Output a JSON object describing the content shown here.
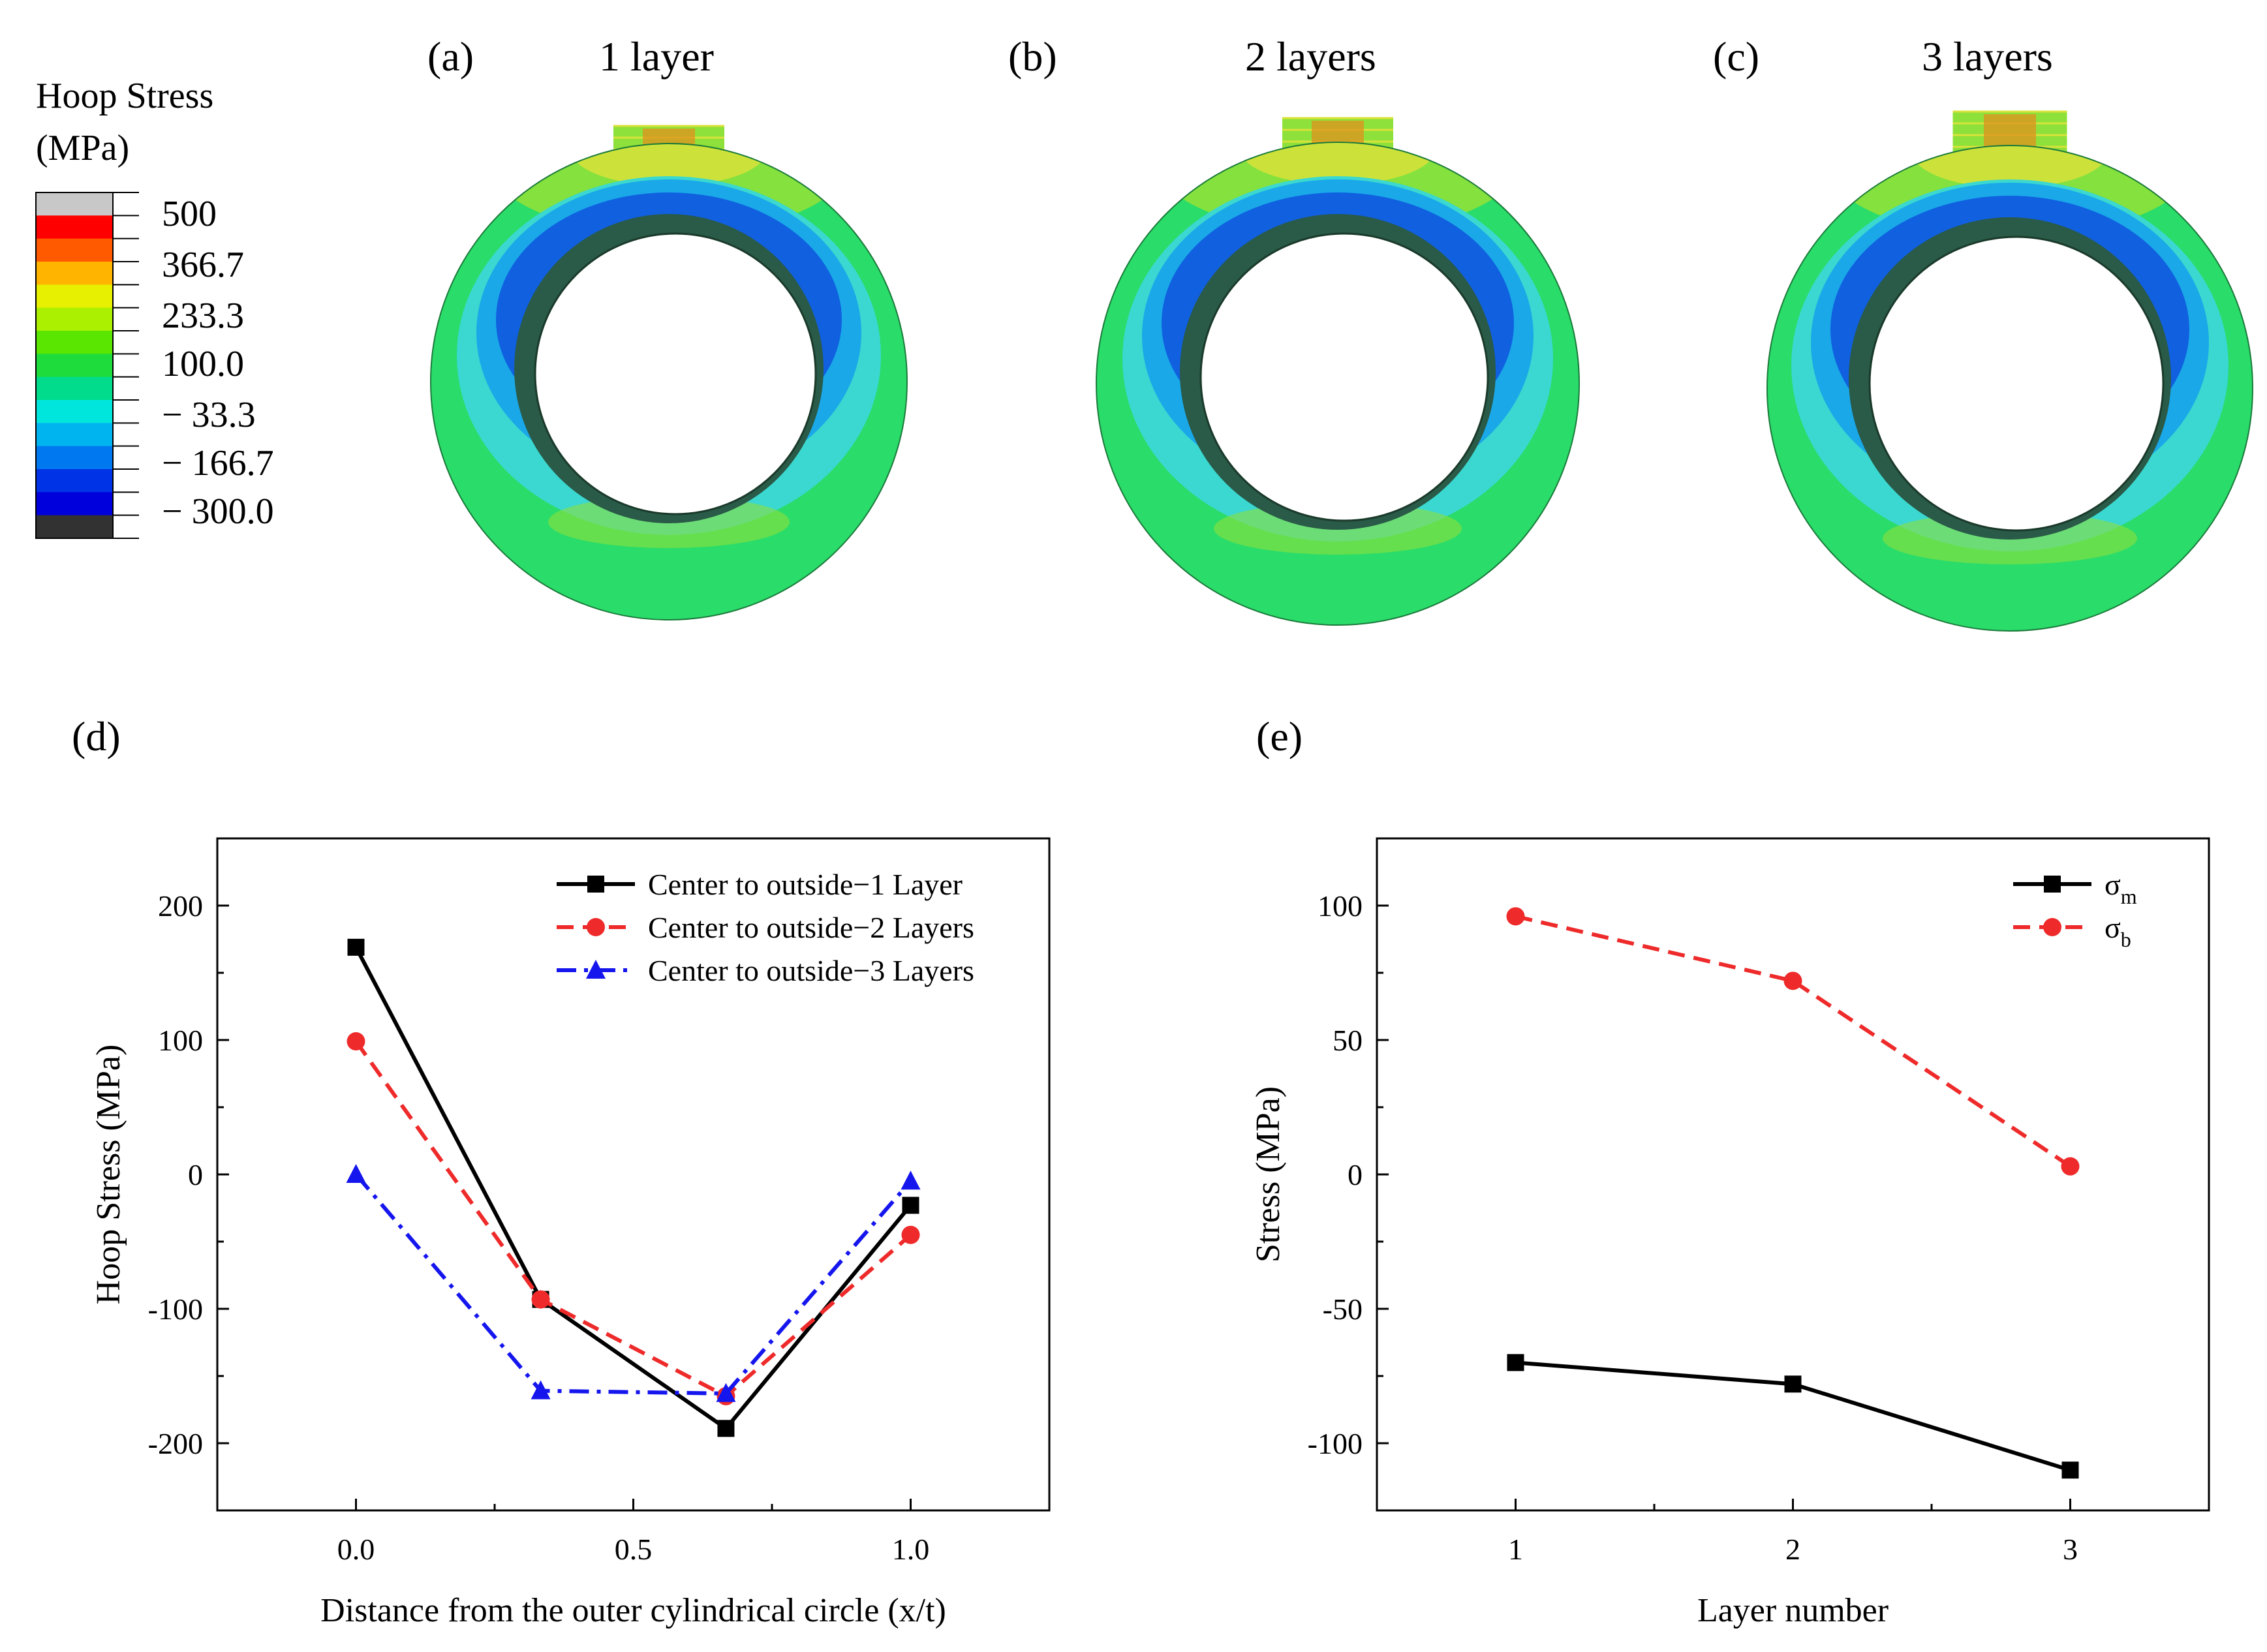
{
  "colorbar": {
    "title_line1": "Hoop Stress",
    "title_line2": "(MPa)",
    "labels": [
      "500",
      "366.7",
      "233.3",
      "100.0",
      "− 33.3",
      "− 166.7",
      "− 300.0"
    ],
    "colors": [
      "#c8c8c8",
      "#ff0000",
      "#ff5a00",
      "#ffb400",
      "#e6f000",
      "#aaf000",
      "#5ae600",
      "#1edc3c",
      "#00dc8c",
      "#00e6dc",
      "#00b4f0",
      "#0078f0",
      "#0032e6",
      "#0000dc",
      "#323232"
    ]
  },
  "panels": [
    {
      "tag": "(a)",
      "title": "1 layer",
      "layers": 1
    },
    {
      "tag": "(b)",
      "title": "2 layers",
      "layers": 2
    },
    {
      "tag": "(c)",
      "title": "3 layers",
      "layers": 3
    }
  ],
  "contour_colors": {
    "base": "#2adc6a",
    "yellowgreen": "#8ee13a",
    "yellow": "#d8e23a",
    "orange": "#e0901e",
    "cyan": "#3ad8d0",
    "lightblue": "#1aa8e8",
    "blue": "#1060e0",
    "darkblue": "#1830c8",
    "inner_wall": "#2a5a48"
  },
  "chart_data": [
    {
      "id": "d",
      "panel_label": "(d)",
      "type": "line",
      "xlabel": "Distance from the outer cylindrical circle  (x/t)",
      "ylabel": "Hoop Stress (MPa)",
      "xlim": [
        -0.25,
        1.25
      ],
      "ylim": [
        -250,
        250
      ],
      "xticks": [
        0.0,
        0.5,
        1.0
      ],
      "xtick_labels": [
        "0.0",
        "0.5",
        "1.0"
      ],
      "yticks": [
        -200,
        -100,
        0,
        100,
        200
      ],
      "ytick_labels": [
        "-200",
        "-100",
        "0",
        "100",
        "200"
      ],
      "legend_position": "top-right",
      "series": [
        {
          "name": "Center to outside−1 Layer",
          "color": "#000000",
          "dash": "solid",
          "marker": "square",
          "x": [
            0.0,
            0.333,
            0.667,
            1.0
          ],
          "y": [
            169,
            -93,
            -189,
            -23
          ]
        },
        {
          "name": "Center to outside−2 Layers",
          "color": "#ee2a2a",
          "dash": "dash",
          "marker": "circle",
          "x": [
            0.0,
            0.333,
            0.667,
            1.0
          ],
          "y": [
            99,
            -93,
            -165,
            -45
          ]
        },
        {
          "name": "Center to outside−3 Layers",
          "color": "#1515ee",
          "dash": "dashdot",
          "marker": "triangle",
          "x": [
            0.0,
            0.333,
            0.667,
            1.0
          ],
          "y": [
            0,
            -161,
            -163,
            -5
          ]
        }
      ]
    },
    {
      "id": "e",
      "panel_label": "(e)",
      "type": "line",
      "xlabel": "Layer number",
      "ylabel": "Stress (MPa)",
      "xlim": [
        0.5,
        3.5
      ],
      "ylim": [
        -125,
        125
      ],
      "xticks": [
        1,
        2,
        3
      ],
      "xtick_labels": [
        "1",
        "2",
        "3"
      ],
      "yticks": [
        -100,
        -50,
        0,
        50,
        100
      ],
      "ytick_labels": [
        "-100",
        "-50",
        "0",
        "50",
        "100"
      ],
      "legend_position": "top-right",
      "series": [
        {
          "name": "σ",
          "subscript": "m",
          "color": "#000000",
          "dash": "solid",
          "marker": "square",
          "x": [
            1,
            2,
            3
          ],
          "y": [
            -70,
            -78,
            -110
          ]
        },
        {
          "name": "σ",
          "subscript": "b",
          "color": "#ee2a2a",
          "dash": "dash",
          "marker": "circle",
          "x": [
            1,
            2,
            3
          ],
          "y": [
            96,
            72,
            3
          ]
        }
      ]
    }
  ]
}
